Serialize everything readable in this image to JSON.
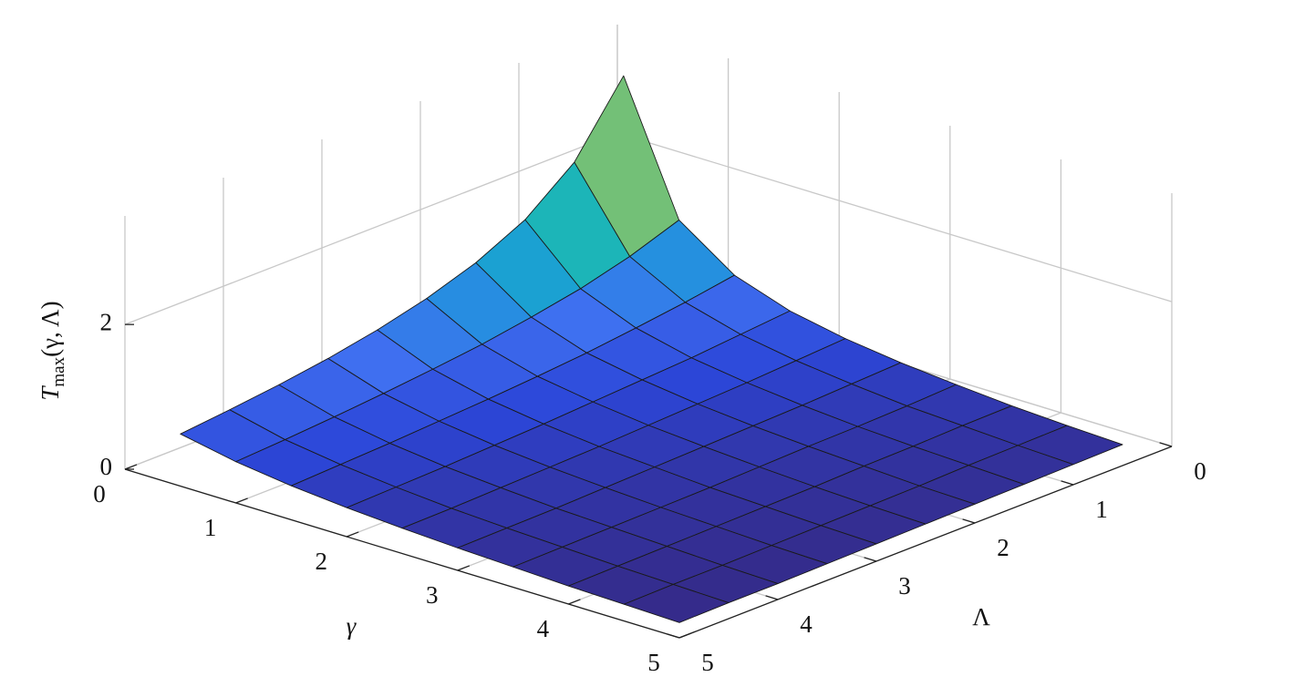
{
  "chart_data": {
    "type": "surface",
    "xlabel": "γ",
    "ylabel": "Λ",
    "zlabel": [
      "T",
      "max",
      "(γ, Λ)"
    ],
    "x": [
      0.5,
      1,
      1.5,
      2,
      2.5,
      3,
      3.5,
      4,
      4.5,
      5
    ],
    "y": [
      0.5,
      1,
      1.5,
      2,
      2.5,
      3,
      3.5,
      4,
      4.5,
      5
    ],
    "z": [
      [
        3.29,
        2.36,
        1.83,
        1.5,
        1.27,
        1.1,
        0.97,
        0.87,
        0.79,
        0.72
      ],
      [
        1.53,
        1.29,
        1.11,
        0.98,
        0.87,
        0.79,
        0.72,
        0.66,
        0.61,
        0.57
      ],
      [
        1.0,
        0.89,
        0.8,
        0.72,
        0.66,
        0.61,
        0.57,
        0.53,
        0.5,
        0.47
      ],
      [
        0.74,
        0.68,
        0.62,
        0.58,
        0.54,
        0.5,
        0.47,
        0.44,
        0.42,
        0.4
      ],
      [
        0.59,
        0.55,
        0.51,
        0.48,
        0.45,
        0.42,
        0.4,
        0.38,
        0.36,
        0.35
      ],
      [
        0.49,
        0.46,
        0.43,
        0.41,
        0.39,
        0.37,
        0.35,
        0.33,
        0.32,
        0.31
      ],
      [
        0.42,
        0.39,
        0.37,
        0.36,
        0.34,
        0.32,
        0.31,
        0.3,
        0.29,
        0.28
      ],
      [
        0.36,
        0.35,
        0.33,
        0.32,
        0.3,
        0.29,
        0.28,
        0.27,
        0.26,
        0.25
      ],
      [
        0.32,
        0.31,
        0.3,
        0.28,
        0.27,
        0.26,
        0.25,
        0.24,
        0.24,
        0.23
      ],
      [
        0.29,
        0.28,
        0.27,
        0.26,
        0.25,
        0.24,
        0.23,
        0.22,
        0.22,
        0.21
      ]
    ],
    "xlim": [
      0,
      5
    ],
    "ylim": [
      0,
      5
    ],
    "zlim": [
      0,
      3.5
    ],
    "xticks": [
      0,
      1,
      2,
      3,
      4,
      5
    ],
    "yticks": [
      0,
      1,
      2,
      3,
      4,
      5
    ],
    "zticks": [
      0,
      2
    ],
    "grid": true,
    "colormap": [
      "#352a87",
      "#2c46d8",
      "#3f6ff0",
      "#1f97dc",
      "#14b3c0",
      "#3cbf97",
      "#9bc060",
      "#e4b83e",
      "#fcd52a",
      "#f9fb0e"
    ]
  }
}
